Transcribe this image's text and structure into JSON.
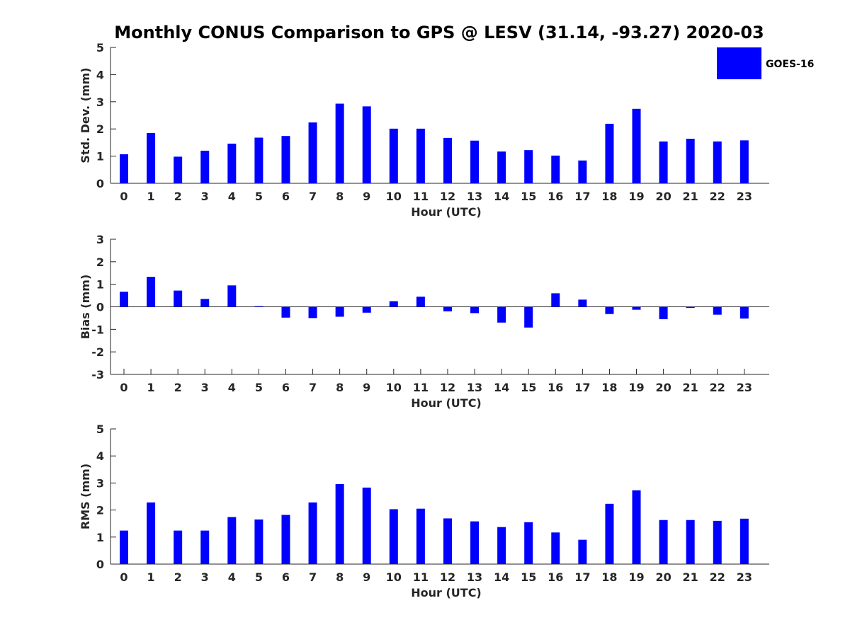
{
  "title": "Monthly CONUS Comparison to GPS @ LESV (31.14, -93.27) 2020-03",
  "legend": {
    "label": "GOES-16",
    "color": "#0000ff"
  },
  "chart_data": [
    {
      "type": "bar",
      "name": "std-dev",
      "xlabel": "Hour (UTC)",
      "ylabel": "Std. Dev. (mm)",
      "ylim": [
        0,
        5
      ],
      "yticks": [
        0,
        1,
        2,
        3,
        4,
        5
      ],
      "categories": [
        "0",
        "1",
        "2",
        "3",
        "4",
        "5",
        "6",
        "7",
        "8",
        "9",
        "10",
        "11",
        "12",
        "13",
        "14",
        "15",
        "16",
        "17",
        "18",
        "19",
        "20",
        "21",
        "22",
        "23"
      ],
      "series": [
        {
          "name": "GOES-16",
          "color": "#0000ff",
          "values": [
            1.07,
            1.85,
            0.98,
            1.2,
            1.46,
            1.68,
            1.74,
            2.24,
            2.93,
            2.83,
            2.01,
            2.01,
            1.67,
            1.57,
            1.17,
            1.22,
            1.02,
            0.84,
            2.19,
            2.74,
            1.54,
            1.64,
            1.54,
            1.58
          ]
        }
      ]
    },
    {
      "type": "bar",
      "name": "bias",
      "xlabel": "Hour (UTC)",
      "ylabel": "Bias (mm)",
      "ylim": [
        -3,
        3
      ],
      "yticks": [
        -3,
        -2,
        -1,
        0,
        1,
        2,
        3
      ],
      "zero_line": true,
      "categories": [
        "0",
        "1",
        "2",
        "3",
        "4",
        "5",
        "6",
        "7",
        "8",
        "9",
        "10",
        "11",
        "12",
        "13",
        "14",
        "15",
        "16",
        "17",
        "18",
        "19",
        "20",
        "21",
        "22",
        "23"
      ],
      "series": [
        {
          "name": "GOES-16",
          "color": "#0000ff",
          "values": [
            0.67,
            1.33,
            0.72,
            0.35,
            0.95,
            0.03,
            -0.48,
            -0.5,
            -0.44,
            -0.26,
            0.25,
            0.45,
            -0.2,
            -0.28,
            -0.7,
            -0.92,
            0.6,
            0.32,
            -0.32,
            -0.13,
            -0.55,
            -0.05,
            -0.35,
            -0.52
          ]
        }
      ]
    },
    {
      "type": "bar",
      "name": "rms",
      "xlabel": "Hour (UTC)",
      "ylabel": "RMS (mm)",
      "ylim": [
        0,
        5
      ],
      "yticks": [
        0,
        1,
        2,
        3,
        4,
        5
      ],
      "categories": [
        "0",
        "1",
        "2",
        "3",
        "4",
        "5",
        "6",
        "7",
        "8",
        "9",
        "10",
        "11",
        "12",
        "13",
        "14",
        "15",
        "16",
        "17",
        "18",
        "19",
        "20",
        "21",
        "22",
        "23"
      ],
      "series": [
        {
          "name": "GOES-16",
          "color": "#0000ff",
          "values": [
            1.24,
            2.28,
            1.24,
            1.24,
            1.74,
            1.65,
            1.82,
            2.28,
            2.96,
            2.83,
            2.03,
            2.05,
            1.69,
            1.58,
            1.37,
            1.55,
            1.17,
            0.9,
            2.23,
            2.73,
            1.63,
            1.63,
            1.6,
            1.68
          ]
        }
      ]
    }
  ]
}
